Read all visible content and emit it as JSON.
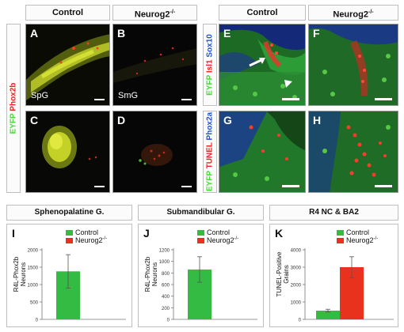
{
  "figure": {
    "headers": {
      "control_left": "Control",
      "mutant_left": "Neurog2",
      "control_right": "Control",
      "mutant_right": "Neurog2"
    },
    "header_sup": "-/-",
    "side_labels": {
      "left": {
        "a": "EYFP",
        "b": "Phox2b"
      },
      "right_top": {
        "a": "EYFP",
        "b": "Isl1",
        "c": "Sox10"
      },
      "right_bottom": {
        "a": "EYFP",
        "b": "TUNEL",
        "c": "Phox2a"
      }
    },
    "panels": {
      "A": "A",
      "B": "B",
      "C": "C",
      "D": "D",
      "E": "E",
      "F": "F",
      "G": "G",
      "H": "H"
    },
    "panel_text": {
      "A": "SpG",
      "B": "SmG"
    }
  },
  "colors": {
    "control": "#33bb44",
    "mutant": "#e8321e",
    "eyfp": "#44dd33",
    "red_label": "#ee2222",
    "blue_label": "#2255cc"
  },
  "chart_data": [
    {
      "type": "bar",
      "panel": "I",
      "title": "Sphenopalatine G.",
      "ylabel": [
        "R4L-Phox2b",
        "Neurons"
      ],
      "yticks": [
        "0",
        "500",
        "1000",
        "1500",
        "2000"
      ],
      "ylim": [
        0,
        2000
      ],
      "series": [
        {
          "name": "Control",
          "value": 1380,
          "error": 480
        },
        {
          "name": "Neurog2",
          "value": 0,
          "error": 0
        }
      ],
      "legend_sup": "-/-"
    },
    {
      "type": "bar",
      "panel": "J",
      "title": "Submandibular G.",
      "ylabel": [
        "R4L-Phox2b",
        "Neurons"
      ],
      "yticks": [
        "0",
        "200",
        "400",
        "600",
        "800",
        "1000",
        "1200"
      ],
      "ylim": [
        0,
        1200
      ],
      "series": [
        {
          "name": "Control",
          "value": 860,
          "error": 220
        },
        {
          "name": "Neurog2",
          "value": 0,
          "error": 0
        }
      ],
      "legend_sup": "-/-"
    },
    {
      "type": "bar",
      "panel": "K",
      "title": "R4 NC & BA2",
      "ylabel": [
        "TUNEL-Positive",
        "Grains"
      ],
      "yticks": [
        "0",
        "1000",
        "2000",
        "3000",
        "4000"
      ],
      "ylim": [
        0,
        4000
      ],
      "series": [
        {
          "name": "Control",
          "value": 500,
          "error": 80
        },
        {
          "name": "Neurog2",
          "value": 3000,
          "error": 600
        }
      ],
      "legend_sup": "-/-"
    }
  ]
}
